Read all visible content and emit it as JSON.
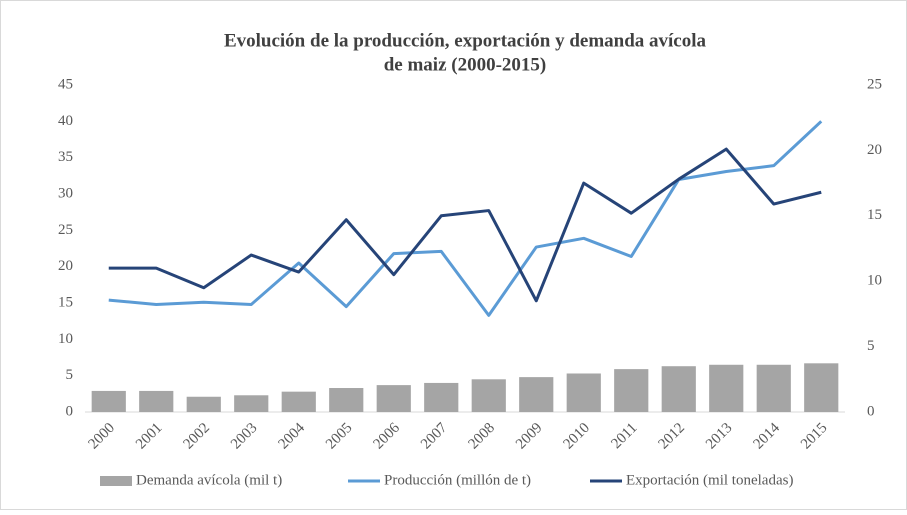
{
  "chart_data": {
    "type": "bar-line",
    "title": [
      "Evolución de la producción, exportación y demanda avícola",
      "de maiz (2000-2015)"
    ],
    "categories": [
      "2000",
      "2001",
      "2002",
      "2003",
      "2004",
      "2005",
      "2006",
      "2007",
      "2008",
      "2009",
      "2010",
      "2011",
      "2012",
      "2013",
      "2014",
      "2015"
    ],
    "series": [
      {
        "name": "Demanda avícola (mil t)",
        "type": "bar",
        "color": "#a5a5a5",
        "axis": "y",
        "values": [
          2.9,
          2.9,
          2.1,
          2.3,
          2.8,
          3.3,
          3.7,
          4.0,
          4.5,
          4.8,
          5.3,
          5.9,
          6.3,
          6.5,
          6.5,
          6.7
        ]
      },
      {
        "name": "Producción (millón de t)",
        "type": "line",
        "color": "#5b9bd5",
        "axis": "y",
        "values": [
          15.4,
          14.8,
          15.1,
          14.8,
          20.5,
          14.5,
          21.8,
          22.1,
          13.3,
          22.7,
          23.9,
          21.4,
          32.0,
          33.1,
          33.9,
          40.0
        ]
      },
      {
        "name": "Exportación (mil toneladas)",
        "type": "line",
        "color": "#264478",
        "axis": "y2",
        "values": [
          11.0,
          11.0,
          9.5,
          12.0,
          10.7,
          14.7,
          10.5,
          15.0,
          15.4,
          8.5,
          17.5,
          15.2,
          17.8,
          20.1,
          15.9,
          16.8
        ]
      }
    ],
    "ylim": [
      0,
      45
    ],
    "yticks": [
      0,
      5,
      10,
      15,
      20,
      25,
      30,
      35,
      40,
      45
    ],
    "y2lim": [
      0,
      25
    ],
    "y2ticks": [
      0,
      5,
      10,
      15,
      20,
      25
    ],
    "grid": false,
    "legend": "bottom"
  }
}
